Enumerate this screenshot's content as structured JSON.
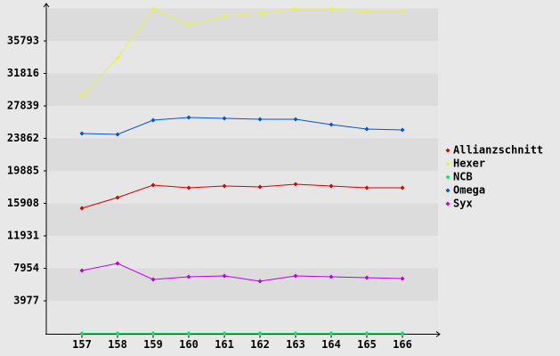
{
  "chart_data": {
    "type": "line",
    "x": [
      157,
      158,
      159,
      160,
      161,
      162,
      163,
      164,
      165,
      166
    ],
    "xlim": [
      156,
      167
    ],
    "xticks": [
      157,
      158,
      159,
      160,
      161,
      162,
      163,
      164,
      165,
      166
    ],
    "ylim": [
      0,
      39770
    ],
    "yticks": [
      3977,
      7954,
      11931,
      15908,
      19885,
      23862,
      27839,
      31816,
      35793
    ],
    "grid": true,
    "legend": "right",
    "series": [
      {
        "name": "Allianzschnitt",
        "color": "#dd0000",
        "values": [
          15309,
          16616,
          18142,
          17815,
          18033,
          17924,
          18251,
          18033,
          17815,
          17815
        ]
      },
      {
        "name": "Hexer",
        "color": "#e6f53a",
        "values": [
          29147,
          33723,
          39716,
          37755,
          38844,
          39171,
          39716,
          39716,
          39389,
          39389
        ]
      },
      {
        "name": "NCB",
        "color": "#00ee66",
        "values": [
          0,
          0,
          0,
          0,
          0,
          0,
          0,
          0,
          0,
          0
        ]
      },
      {
        "name": "Omega",
        "color": "#0055dd",
        "values": [
          24461,
          24352,
          26095,
          26422,
          26313,
          26204,
          26204,
          25550,
          25005,
          24896
        ]
      },
      {
        "name": "Syx",
        "color": "#bb00ee",
        "values": [
          7682,
          8553,
          6592,
          6919,
          7028,
          6374,
          7028,
          6919,
          6810,
          6701
        ]
      }
    ]
  }
}
